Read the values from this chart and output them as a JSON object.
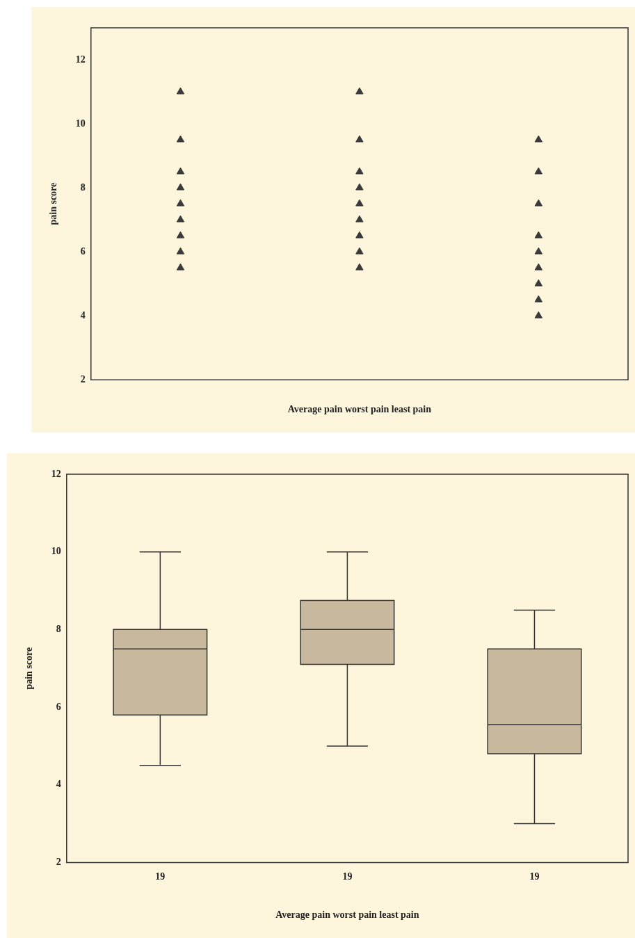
{
  "chart_data": [
    {
      "type": "scatter",
      "xlabel": "Average pain worst pain least pain",
      "ylabel": "pain score",
      "categories": [
        null,
        null,
        null
      ],
      "series": [
        {
          "color": "#3a3a3a",
          "values": [
            11,
            11,
            9.5
          ]
        },
        {
          "color": "#3a3a3a",
          "values": [
            9.5,
            9.5,
            8.5
          ]
        },
        {
          "color": "#3a3a3a",
          "values": [
            8.5,
            8.5,
            7.5
          ]
        },
        {
          "color": "#3a3a3a",
          "values": [
            8,
            8,
            6.5
          ]
        },
        {
          "color": "#3a3a3a",
          "values": [
            7.5,
            7.5,
            6
          ]
        },
        {
          "color": "#3a3a3a",
          "values": [
            7,
            7,
            5.5
          ]
        },
        {
          "color": "#3a3a3a",
          "values": [
            6.5,
            6.5,
            5
          ]
        },
        {
          "color": "#3a3a3a",
          "values": [
            6,
            6,
            4.5
          ]
        },
        {
          "color": "#3a3a3a",
          "values": [
            5.5,
            5.5,
            4
          ]
        }
      ],
      "ylim": [
        2,
        13
      ],
      "yticks": [
        2,
        4,
        6,
        8,
        10,
        12
      ],
      "tick_labels": "y",
      "marker": "triangle",
      "grid": false,
      "legend": false
    },
    {
      "type": "box",
      "xlabel": "Average pain worst pain least pain",
      "ylabel": "pain score",
      "categories": [
        "19",
        "19",
        "19"
      ],
      "color": "#c8b89e",
      "boxes": [
        {
          "low": 4.5,
          "q1": 5.8,
          "median": 7.5,
          "q3": 8,
          "high": 10
        },
        {
          "low": 5,
          "q1": 7.1,
          "median": 8,
          "q3": 8.75,
          "high": 10
        },
        {
          "low": 3,
          "q1": 4.8,
          "median": 5.55,
          "q3": 7.5,
          "high": 8.5
        }
      ],
      "ylim": [
        2,
        12
      ],
      "yticks": [
        2,
        4,
        6,
        8,
        10,
        12
      ],
      "grid": false,
      "legend": false
    }
  ]
}
